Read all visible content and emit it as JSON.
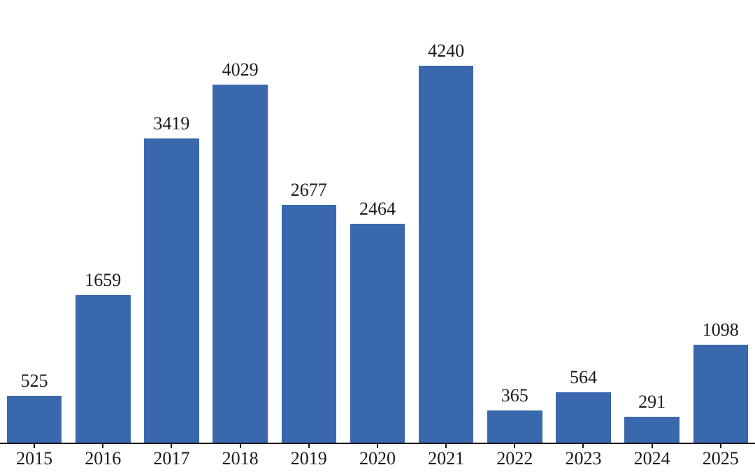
{
  "chart_data": {
    "type": "bar",
    "title": "",
    "xlabel": "",
    "ylabel": "",
    "categories": [
      "2015",
      "2016",
      "2017",
      "2018",
      "2019",
      "2020",
      "2021",
      "2022",
      "2023",
      "2024",
      "2025"
    ],
    "values": [
      525,
      1659,
      3419,
      4029,
      2677,
      2464,
      4240,
      365,
      564,
      291,
      1098
    ],
    "value_labels": [
      "525",
      "1659",
      "3419",
      "4029",
      "2677",
      "2464",
      "4240",
      "365",
      "564",
      "291",
      "1098"
    ],
    "ylim": [
      0,
      4452
    ],
    "grid": false,
    "legend": null,
    "bar_color": "#3A68AC",
    "axis_color": "#1a1a1a",
    "text_color": "#1a1a1a"
  }
}
